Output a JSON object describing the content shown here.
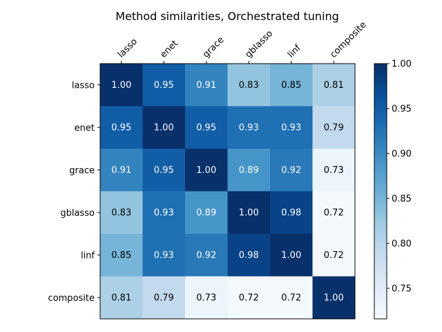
{
  "chart_data": {
    "type": "heatmap",
    "title": "Method similarities, Orchestrated tuning",
    "x_labels": [
      "lasso",
      "enet",
      "grace",
      "gblasso",
      "linf",
      "composite"
    ],
    "y_labels": [
      "lasso",
      "enet",
      "grace",
      "gblasso",
      "linf",
      "composite"
    ],
    "values": [
      [
        1.0,
        0.95,
        0.91,
        0.83,
        0.85,
        0.81
      ],
      [
        0.95,
        1.0,
        0.95,
        0.93,
        0.93,
        0.79
      ],
      [
        0.91,
        0.95,
        1.0,
        0.89,
        0.92,
        0.73
      ],
      [
        0.83,
        0.93,
        0.89,
        1.0,
        0.98,
        0.72
      ],
      [
        0.85,
        0.93,
        0.92,
        0.98,
        1.0,
        0.72
      ],
      [
        0.81,
        0.79,
        0.73,
        0.72,
        0.72,
        1.0
      ]
    ],
    "value_format": "2 decimals",
    "colormap": "Blues",
    "color_range": [
      0.716,
      1.0
    ],
    "colorbar_ticks": [
      0.75,
      0.8,
      0.85,
      0.9,
      0.95,
      1.0
    ],
    "colorbar_tick_labels": [
      "0.75",
      "0.80",
      "0.85",
      "0.90",
      "0.95",
      "1.00"
    ],
    "x_labels_position": "top",
    "colorbar_position": "right",
    "colors": {
      "text_light": "#ffffff",
      "text_dark": "#000000",
      "axis": "#000000"
    }
  }
}
